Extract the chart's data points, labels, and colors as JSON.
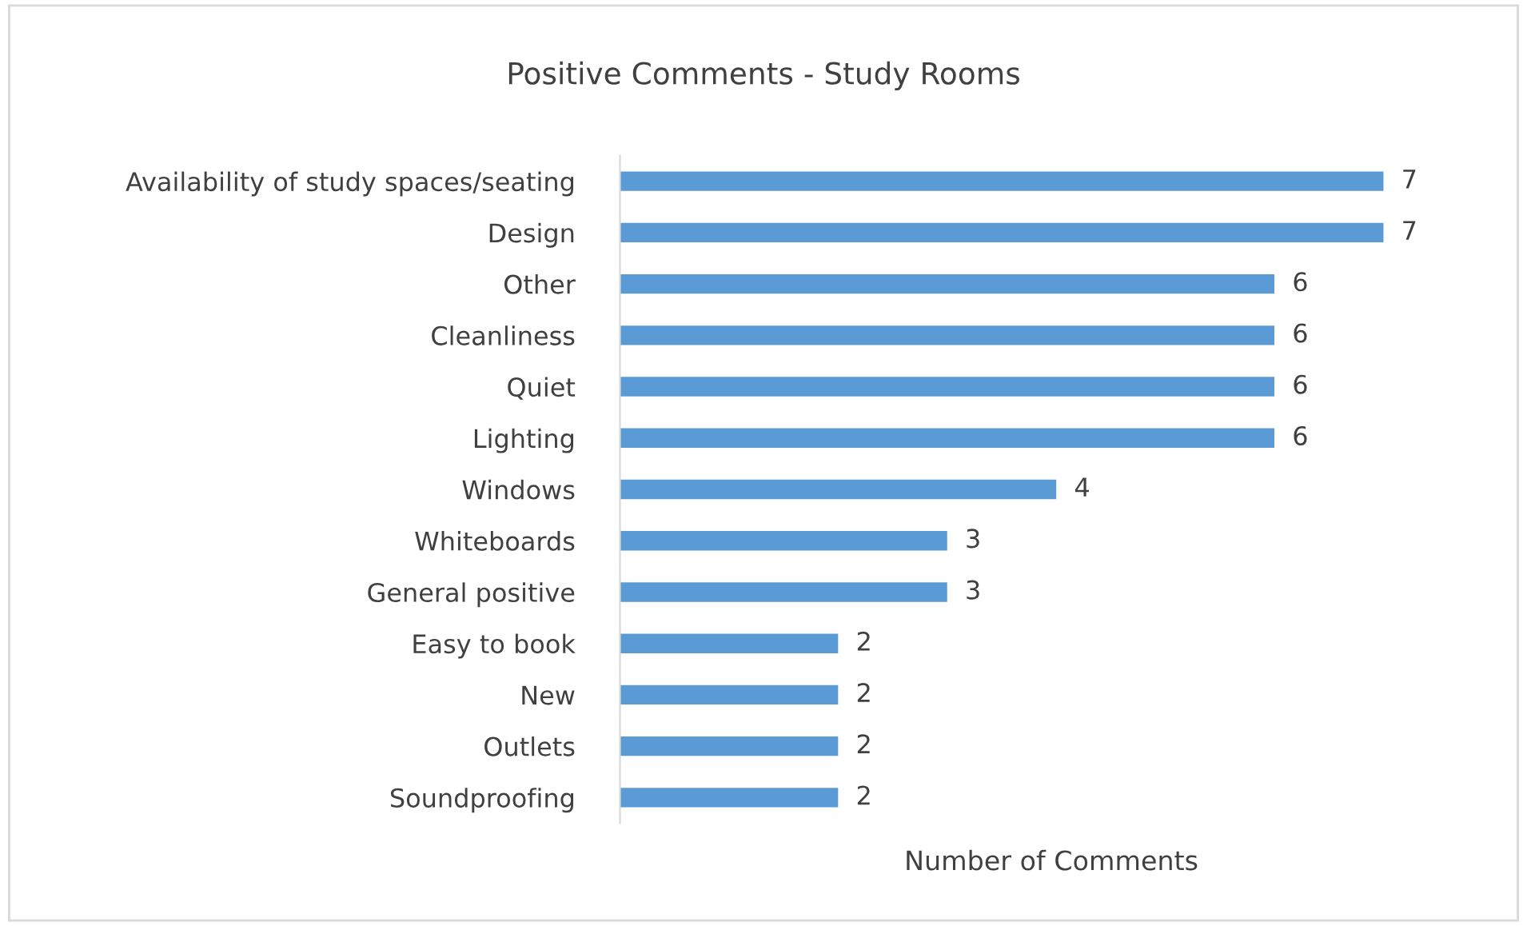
{
  "chart_data": {
    "type": "bar",
    "orientation": "horizontal",
    "title": "Positive Comments - Study Rooms",
    "xlabel": "Number of Comments",
    "categories": [
      "Availability of study spaces/seating",
      "Design",
      "Other",
      "Cleanliness",
      "Quiet",
      "Lighting",
      "Windows",
      "Whiteboards",
      "General positive",
      "Easy to book",
      "New",
      "Outlets",
      "Soundproofing"
    ],
    "values": [
      7,
      7,
      6,
      6,
      6,
      6,
      4,
      3,
      3,
      2,
      2,
      2,
      2
    ],
    "color": "#5b9bd5",
    "data_labels": true,
    "tick_labels": "y",
    "legend": false
  }
}
